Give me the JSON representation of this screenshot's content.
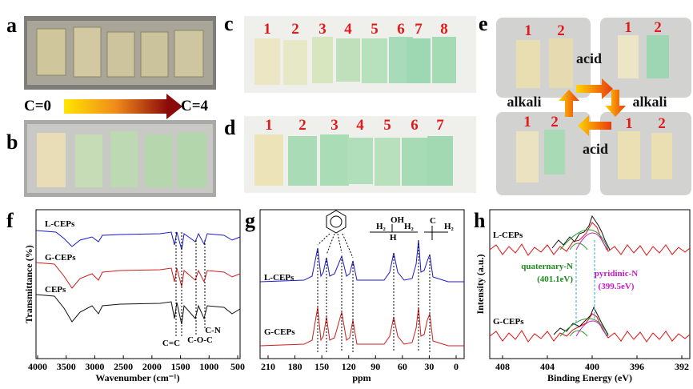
{
  "panel_labels": [
    "a",
    "b",
    "c",
    "d",
    "e",
    "f",
    "g",
    "h"
  ],
  "gradient": {
    "start": "C=0",
    "end": "C=4"
  },
  "c_numbers": [
    1,
    2,
    3,
    4,
    5,
    6,
    7,
    8
  ],
  "d_numbers": [
    1,
    2,
    3,
    4,
    5,
    6,
    7
  ],
  "e": {
    "boxes": [
      [
        1,
        2
      ],
      [
        1,
        2
      ],
      [
        1,
        2
      ],
      [
        1,
        2
      ]
    ],
    "arrows": [
      "acid",
      "alkali",
      "acid",
      "alkali"
    ]
  },
  "f": {
    "ylabel": "Transmittance (%)",
    "xlabel": "Wavenumber (cm⁻¹)",
    "xticks": [
      4000,
      3500,
      3000,
      2500,
      2000,
      1500,
      1000,
      500
    ],
    "series": [
      "L-CEPs",
      "G-CEPs",
      "CEPs"
    ],
    "annotations": [
      "C=C",
      "C-O-C",
      "C-N"
    ]
  },
  "g": {
    "xlabel": "ppm",
    "xticks": [
      210,
      180,
      150,
      120,
      90,
      60,
      30,
      0
    ],
    "series": [
      "L-CEPs",
      "G-CEPs"
    ],
    "structure": [
      "OH",
      "H",
      "H₂",
      "H₂",
      "C",
      "H₂"
    ]
  },
  "h": {
    "ylabel": "Intensity (a.u.)",
    "xlabel": "Binding Energy (eV)",
    "xticks": [
      408,
      404,
      400,
      396,
      392
    ],
    "series": [
      "L-CEPs",
      "G-CEPs"
    ],
    "peaks": [
      {
        "name": "quaternary-N",
        "energy": "(401.1eV)"
      },
      {
        "name": "pyridinic-N",
        "energy": "(399.5eV)"
      }
    ]
  }
}
